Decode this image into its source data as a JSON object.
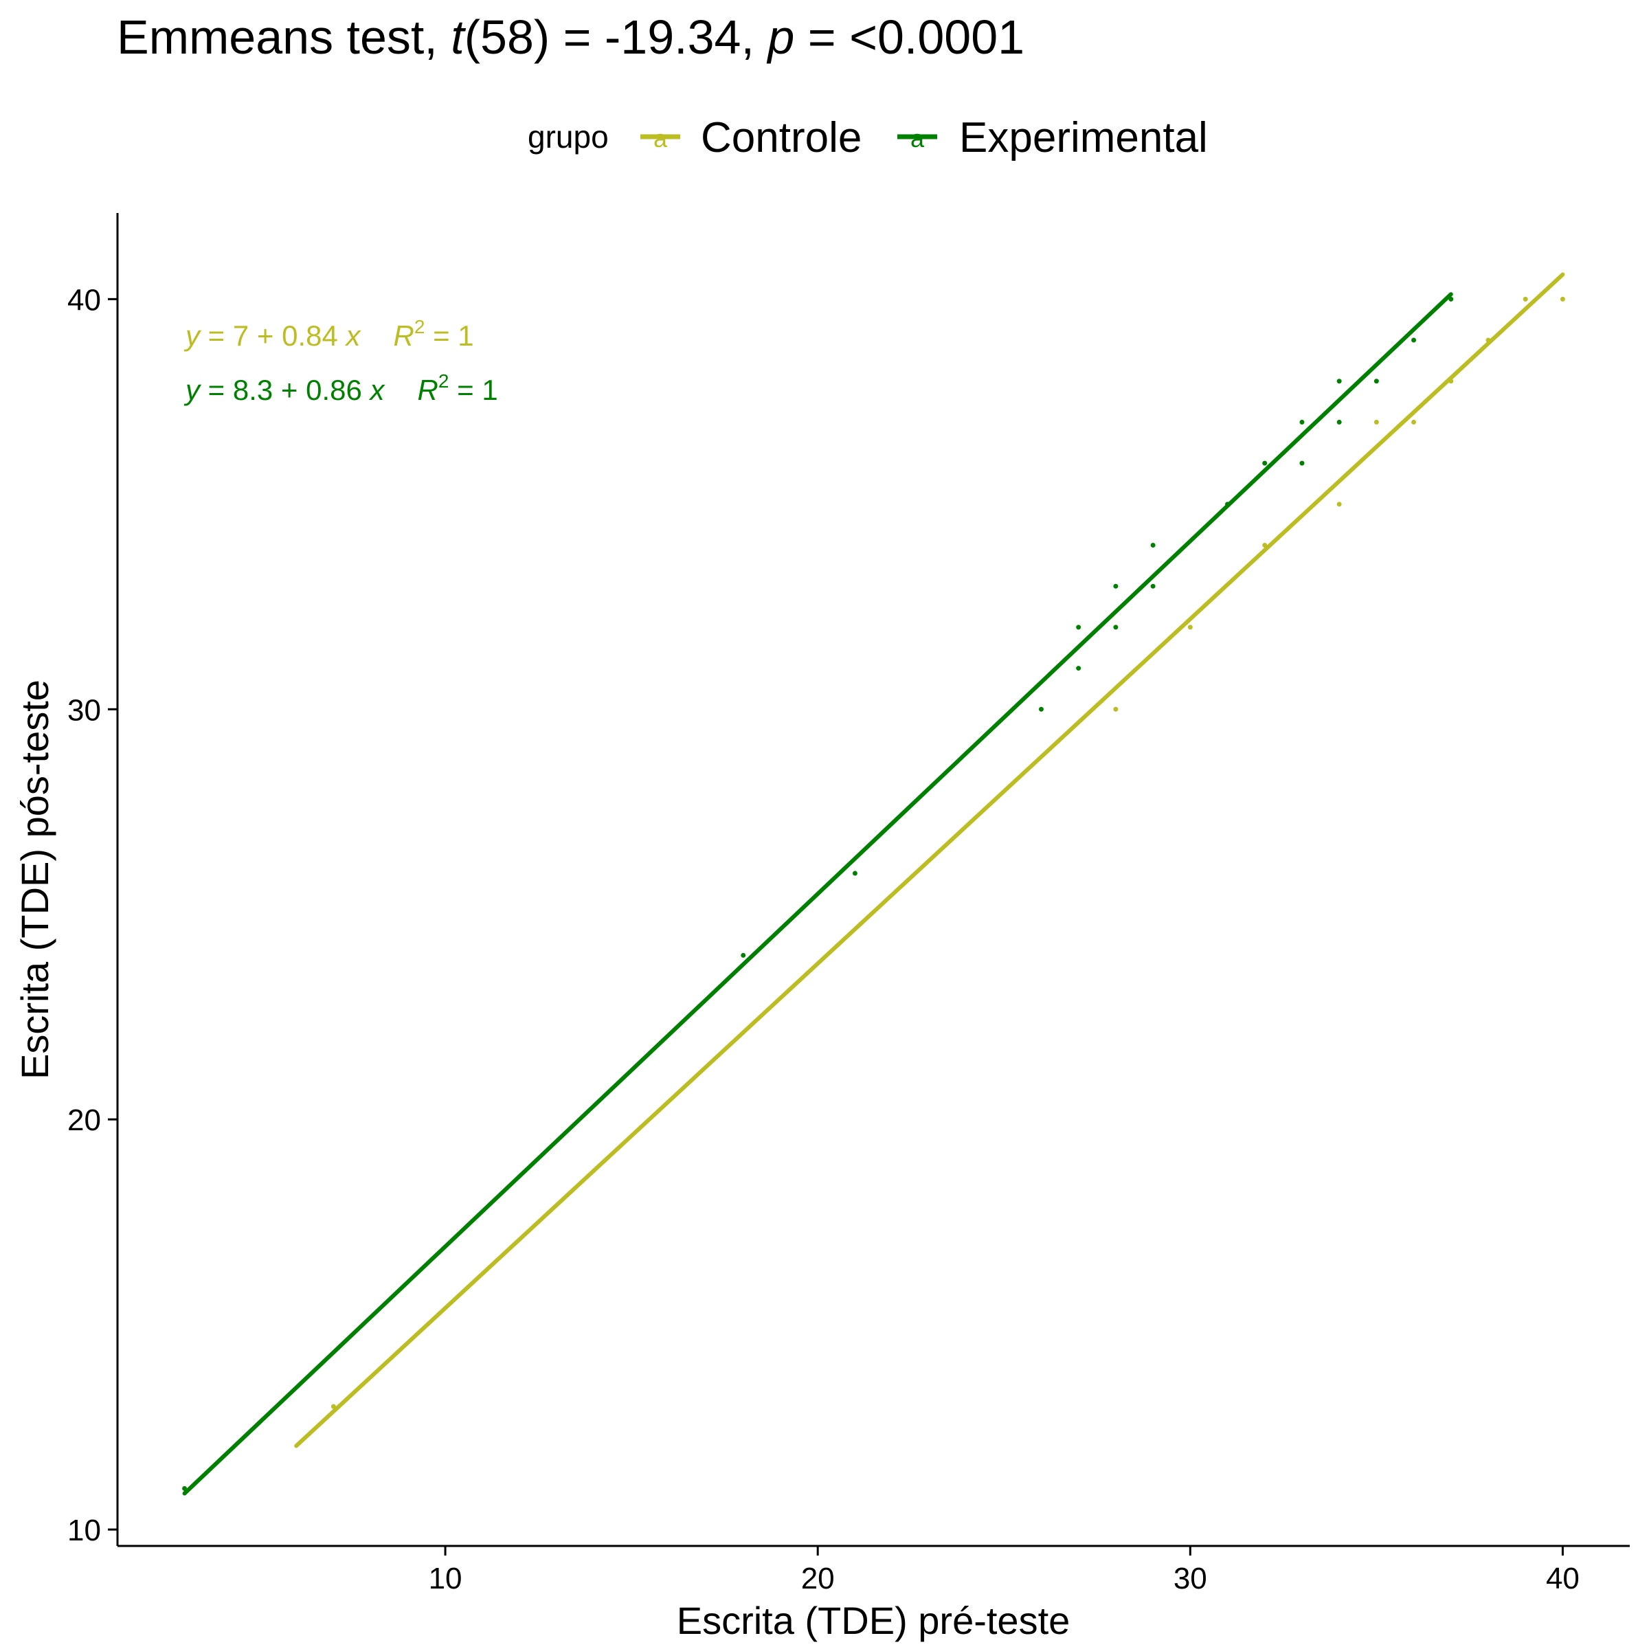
{
  "title": {
    "prefix": "Emmeans test, ",
    "t_symbol": "t",
    "t_args": "(58) = -19.34, ",
    "p_symbol": "p",
    "p_value": " = <0.0001"
  },
  "legend": {
    "title": "grupo",
    "key_glyph": "a",
    "placement": "top",
    "items": [
      {
        "label": "Controle",
        "color": "#BCBD22"
      },
      {
        "label": "Experimental",
        "color": "#008000"
      }
    ]
  },
  "equations": [
    {
      "y": "y",
      "body": " = 7 + 0.84 ",
      "x": "x",
      "r": "R",
      "sup": "2",
      "rhs": " = 1",
      "color": "#BCBD22"
    },
    {
      "y": "y",
      "body": " = 8.3 + 0.86 ",
      "x": "x",
      "r": "R",
      "sup": "2",
      "rhs": " = 1",
      "color": "#008000"
    }
  ],
  "chart_data": {
    "type": "scatter",
    "title": "Emmeans test, t(58) = -19.34, p = <0.0001",
    "xlabel": "Escrita (TDE) pré-teste",
    "ylabel": "Escrita (TDE) pós-teste",
    "xlim": [
      1.2,
      41.8
    ],
    "ylim": [
      9.6,
      42.1
    ],
    "xticks": [
      10,
      20,
      30,
      40
    ],
    "yticks": [
      10,
      20,
      30,
      40
    ],
    "grid": false,
    "legend_position": "top",
    "series": [
      {
        "name": "Controle",
        "color": "#BCBD22",
        "points": [
          [
            7,
            13
          ],
          [
            28,
            30
          ],
          [
            30,
            32
          ],
          [
            32,
            34
          ],
          [
            34,
            35
          ],
          [
            35,
            37
          ],
          [
            36,
            37
          ],
          [
            37,
            38
          ],
          [
            38,
            39
          ],
          [
            39,
            40
          ],
          [
            40,
            40
          ]
        ],
        "fit": {
          "intercept": 7,
          "slope": 0.84,
          "x_range": [
            6,
            40
          ]
        }
      },
      {
        "name": "Experimental",
        "color": "#008000",
        "points": [
          [
            3,
            11
          ],
          [
            18,
            24
          ],
          [
            21,
            26
          ],
          [
            26,
            30
          ],
          [
            27,
            31
          ],
          [
            27,
            32
          ],
          [
            28,
            32
          ],
          [
            28,
            33
          ],
          [
            29,
            33
          ],
          [
            29,
            34
          ],
          [
            31,
            35
          ],
          [
            32,
            36
          ],
          [
            33,
            36
          ],
          [
            33,
            37
          ],
          [
            34,
            37
          ],
          [
            34,
            38
          ],
          [
            35,
            38
          ],
          [
            36,
            39
          ],
          [
            37,
            40
          ]
        ],
        "fit": {
          "intercept": 8.3,
          "slope": 0.86,
          "x_range": [
            3,
            37
          ]
        }
      }
    ]
  }
}
